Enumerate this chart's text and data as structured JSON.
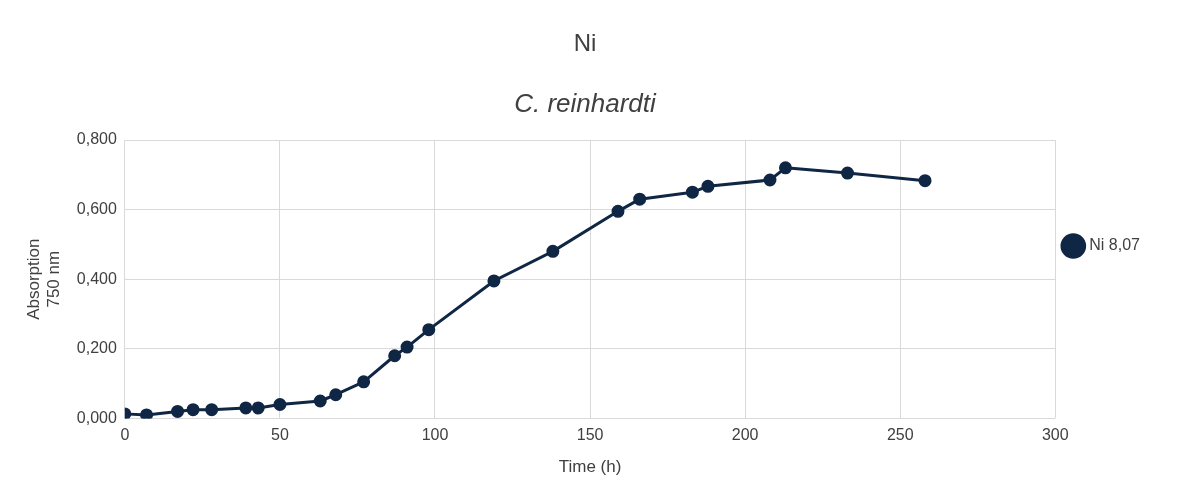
{
  "chart_data": {
    "type": "line",
    "title": "Ni",
    "subtitle": "C. reinhardti",
    "xlabel": "Time (h)",
    "ylabel": "Absorption\n750 nm",
    "series": [
      {
        "name": "Ni 8,07",
        "color": "#0f2644",
        "x": [
          0,
          7,
          17,
          22,
          28,
          39,
          43,
          50,
          63,
          68,
          77,
          87,
          91,
          98,
          119,
          138,
          159,
          166,
          183,
          188,
          208,
          213,
          233,
          258
        ],
        "values": [
          0.013,
          0.01,
          0.02,
          0.025,
          0.025,
          0.03,
          0.03,
          0.04,
          0.05,
          0.068,
          0.105,
          0.18,
          0.205,
          0.255,
          0.395,
          0.48,
          0.595,
          0.63,
          0.65,
          0.667,
          0.685,
          0.72,
          0.705,
          0.683
        ]
      }
    ],
    "xlim": [
      0,
      300
    ],
    "xticks": [
      0,
      50,
      100,
      150,
      200,
      250,
      300
    ],
    "ylim": [
      0,
      0.8
    ],
    "yticks": [
      {
        "value": 0,
        "label": "0,000"
      },
      {
        "value": 0.2,
        "label": "0,200"
      },
      {
        "value": 0.4,
        "label": "0,400"
      },
      {
        "value": 0.6,
        "label": "0,600"
      },
      {
        "value": 0.8,
        "label": "0,800"
      }
    ],
    "grid": true,
    "legend": "right",
    "marker": "circle",
    "line_style": "solid"
  }
}
